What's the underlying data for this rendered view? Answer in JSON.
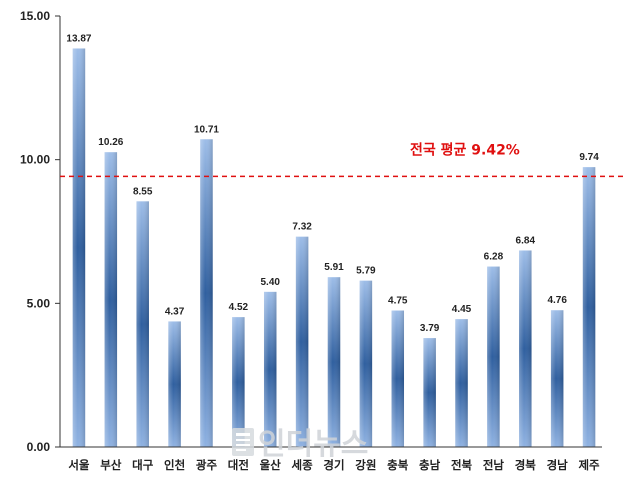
{
  "chart_data": {
    "type": "bar",
    "categories": [
      "서울",
      "부산",
      "대구",
      "인천",
      "광주",
      "대전",
      "울산",
      "세종",
      "경기",
      "강원",
      "충북",
      "충남",
      "전북",
      "전남",
      "경북",
      "경남",
      "제주"
    ],
    "values": [
      13.87,
      10.26,
      8.55,
      4.37,
      10.71,
      4.52,
      5.4,
      7.32,
      5.91,
      5.79,
      4.75,
      3.79,
      4.45,
      6.28,
      6.84,
      4.76,
      9.74
    ],
    "value_labels": [
      "13.87",
      "10.26",
      "8.55",
      "4.37",
      "10.71",
      "4.52",
      "5.40",
      "7.32",
      "5.91",
      "5.79",
      "4.75",
      "3.79",
      "4.45",
      "6.28",
      "6.84",
      "4.76",
      "9.74"
    ],
    "ylim": [
      0,
      15
    ],
    "yticks": [
      0,
      5,
      10,
      15
    ],
    "ytick_labels": [
      "0.00",
      "5.00",
      "10.00",
      "15.00"
    ],
    "grid": false,
    "reference_line": {
      "value": 9.42,
      "label": "전국 평균 9.42%",
      "color": "#e01010",
      "style": "dashed"
    },
    "colors": {
      "bar_light": "#9dbde8",
      "bar_dark": "#3a6cb0",
      "axis": "#333333"
    }
  },
  "watermark": {
    "text": "인더뉴스",
    "icon": "newspaper-logo-icon"
  }
}
